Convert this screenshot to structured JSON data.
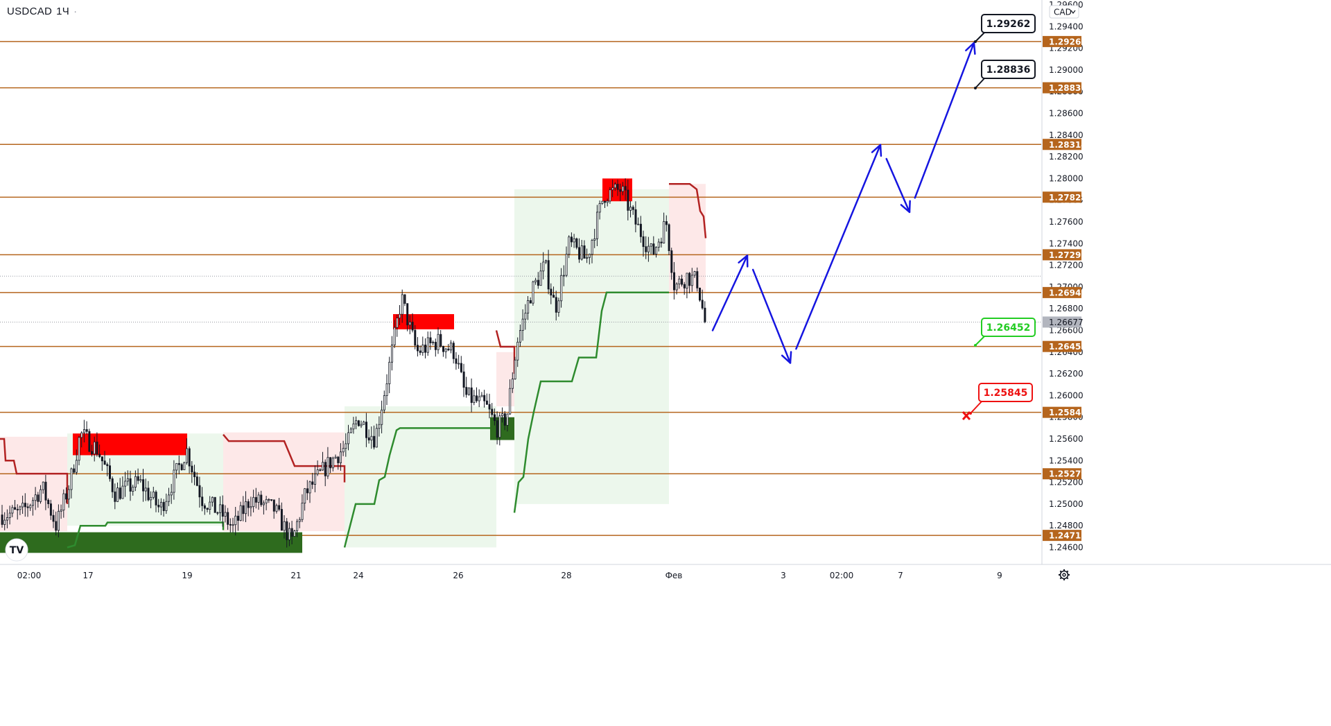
{
  "header": {
    "symbol": "USDCAD",
    "timeframe": "1Ч",
    "currency_button": "CAD"
  },
  "colors": {
    "level_line": "#b5651d",
    "resist_line": "#b22222",
    "support_line": "#2e8b2e",
    "resist_box": "#ff0000",
    "support_box": "#2e6b1e",
    "arrow": "#1515e0",
    "target_green": "#22cc22",
    "stop_red": "#ee1111"
  },
  "logo": {
    "text": "TV",
    "icon": "tradingview-logo-icon"
  },
  "settings_icon": "gear-icon",
  "chart_data": {
    "type": "candlestick",
    "symbol": "USDCAD",
    "interval": "1H",
    "y_range": [
      1.245,
      1.296
    ],
    "y_ticks": [
      "1.24600",
      "1.24800",
      "1.25000",
      "1.25200",
      "1.25400",
      "1.25600",
      "1.25800",
      "1.26000",
      "1.26200",
      "1.26400",
      "1.26600",
      "1.26800",
      "1.27000",
      "1.27200",
      "1.27400",
      "1.27600",
      "1.27800",
      "1.28000",
      "1.28200",
      "1.28400",
      "1.28600",
      "1.28800",
      "1.29000",
      "1.29200",
      "1.29400",
      "1.29600"
    ],
    "x_ticks": [
      "02:00",
      "17",
      "19",
      "21",
      "24",
      "26",
      "28",
      "Фев",
      "3",
      "02:00",
      "7",
      "9"
    ],
    "current_price": "1.26677",
    "levels": [
      "1.29262",
      "1.28836",
      "1.28314",
      "1.27828",
      "1.27297",
      "1.26949",
      "1.26452",
      "1.25845",
      "1.25279",
      "1.24711"
    ],
    "callouts": [
      {
        "text": "1.29262",
        "style": "target"
      },
      {
        "text": "1.28836",
        "style": "target"
      },
      {
        "text": "1.26452",
        "style": "entry"
      },
      {
        "text": "1.25845",
        "style": "stop"
      }
    ],
    "resistance_zones": [
      {
        "top": 1.2565,
        "bottom": 1.2545
      },
      {
        "top": 1.2675,
        "bottom": 1.2661
      },
      {
        "top": 1.28,
        "bottom": 1.2779
      }
    ],
    "support_zones": [
      {
        "top": 1.2474,
        "bottom": 1.2455
      },
      {
        "top": 1.258,
        "bottom": 1.2559
      }
    ],
    "forecast_path": [
      1.266,
      1.2729,
      1.263,
      1.2831,
      1.2769,
      1.2925
    ]
  }
}
